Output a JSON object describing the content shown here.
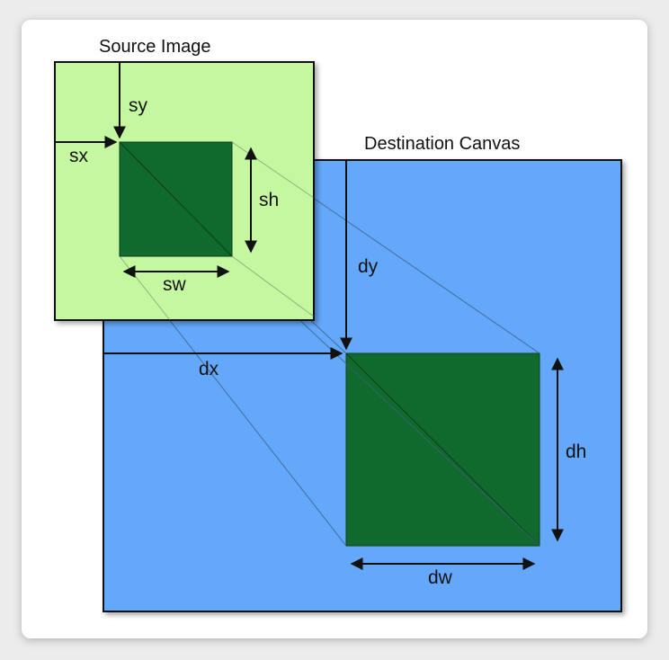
{
  "source": {
    "title": "Source Image",
    "labels": {
      "sx": "sx",
      "sy": "sy",
      "sw": "sw",
      "sh": "sh"
    }
  },
  "destination": {
    "title": "Destination Canvas",
    "labels": {
      "dx": "dx",
      "dy": "dy",
      "dw": "dw",
      "dh": "dh"
    }
  },
  "colors": {
    "source_fill": "#c5f7a0",
    "destination_fill": "#64a8fb",
    "slice_fill": "#116a2d",
    "stroke": "#111111"
  }
}
